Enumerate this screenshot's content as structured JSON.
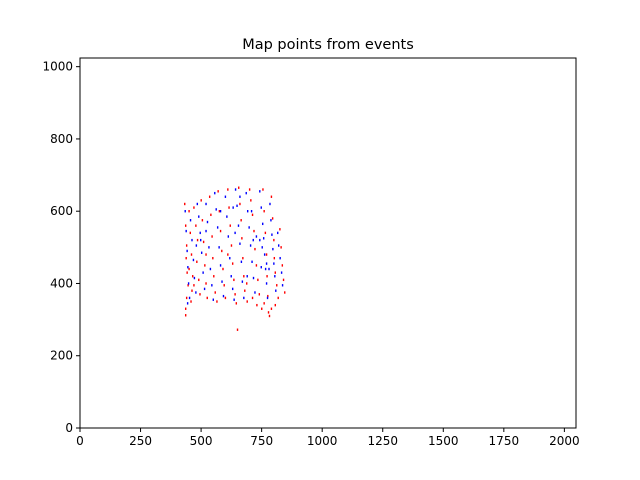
{
  "chart_data": {
    "type": "scatter",
    "title": "Map points from events",
    "xlabel": "",
    "ylabel": "",
    "xlim": [
      0,
      2048
    ],
    "ylim": [
      0,
      1024
    ],
    "xticks": [
      0,
      250,
      500,
      750,
      1000,
      1250,
      1500,
      1750,
      2000
    ],
    "yticks": [
      0,
      200,
      400,
      600,
      800,
      1000
    ],
    "grid": false,
    "legend": "none",
    "colors": {
      "series_red": "#ff0000",
      "series_blue": "#0000ff",
      "axes": "#000000",
      "background": "#ffffff"
    },
    "series": [
      {
        "color": "#ff0000",
        "points": [
          [
            432,
            620
          ],
          [
            436,
            560
          ],
          [
            440,
            505
          ],
          [
            438,
            470
          ],
          [
            442,
            430
          ],
          [
            446,
            395
          ],
          [
            440,
            360
          ],
          [
            436,
            330
          ],
          [
            436,
            312
          ],
          [
            450,
            600
          ],
          [
            455,
            540
          ],
          [
            460,
            480
          ],
          [
            465,
            420
          ],
          [
            462,
            380
          ],
          [
            458,
            350
          ],
          [
            470,
            610
          ],
          [
            478,
            560
          ],
          [
            485,
            520
          ],
          [
            482,
            460
          ],
          [
            490,
            410
          ],
          [
            495,
            370
          ],
          [
            500,
            630
          ],
          [
            505,
            575
          ],
          [
            510,
            515
          ],
          [
            515,
            450
          ],
          [
            520,
            400
          ],
          [
            525,
            360
          ],
          [
            535,
            640
          ],
          [
            540,
            590
          ],
          [
            545,
            530
          ],
          [
            548,
            470
          ],
          [
            552,
            420
          ],
          [
            558,
            375
          ],
          [
            565,
            350
          ],
          [
            570,
            655
          ],
          [
            575,
            600
          ],
          [
            580,
            545
          ],
          [
            585,
            490
          ],
          [
            590,
            440
          ],
          [
            595,
            395
          ],
          [
            600,
            360
          ],
          [
            610,
            660
          ],
          [
            615,
            610
          ],
          [
            620,
            560
          ],
          [
            625,
            505
          ],
          [
            630,
            455
          ],
          [
            635,
            410
          ],
          [
            640,
            370
          ],
          [
            645,
            345
          ],
          [
            655,
            665
          ],
          [
            660,
            620
          ],
          [
            665,
            575
          ],
          [
            668,
            525
          ],
          [
            672,
            470
          ],
          [
            676,
            420
          ],
          [
            680,
            380
          ],
          [
            690,
            350
          ],
          [
            700,
            660
          ],
          [
            705,
            630
          ],
          [
            712,
            590
          ],
          [
            718,
            545
          ],
          [
            722,
            495
          ],
          [
            728,
            450
          ],
          [
            734,
            410
          ],
          [
            740,
            370
          ],
          [
            750,
            330
          ],
          [
            755,
            660
          ],
          [
            760,
            600
          ],
          [
            765,
            540
          ],
          [
            770,
            480
          ],
          [
            772,
            420
          ],
          [
            775,
            365
          ],
          [
            778,
            320
          ],
          [
            782,
            310
          ],
          [
            790,
            640
          ],
          [
            795,
            580
          ],
          [
            800,
            520
          ],
          [
            802,
            470
          ],
          [
            806,
            430
          ],
          [
            812,
            395
          ],
          [
            818,
            360
          ],
          [
            825,
            550
          ],
          [
            830,
            500
          ],
          [
            835,
            450
          ],
          [
            840,
            410
          ],
          [
            845,
            375
          ],
          [
            790,
            330
          ],
          [
            806,
            340
          ],
          [
            760,
            345
          ],
          [
            730,
            340
          ],
          [
            712,
            360
          ],
          [
            688,
            400
          ],
          [
            650,
            272
          ],
          [
            450,
            440
          ],
          [
            470,
            395
          ],
          [
            520,
            480
          ],
          [
            610,
            480
          ]
        ]
      },
      {
        "color": "#0000ff",
        "points": [
          [
            434,
            600
          ],
          [
            438,
            545
          ],
          [
            442,
            490
          ],
          [
            445,
            445
          ],
          [
            448,
            400
          ],
          [
            452,
            360
          ],
          [
            444,
            345
          ],
          [
            456,
            575
          ],
          [
            462,
            520
          ],
          [
            468,
            465
          ],
          [
            472,
            415
          ],
          [
            478,
            375
          ],
          [
            484,
            620
          ],
          [
            490,
            585
          ],
          [
            496,
            540
          ],
          [
            502,
            485
          ],
          [
            508,
            430
          ],
          [
            514,
            385
          ],
          [
            520,
            620
          ],
          [
            526,
            570
          ],
          [
            532,
            500
          ],
          [
            538,
            440
          ],
          [
            544,
            395
          ],
          [
            550,
            355
          ],
          [
            556,
            650
          ],
          [
            562,
            605
          ],
          [
            568,
            555
          ],
          [
            574,
            500
          ],
          [
            580,
            450
          ],
          [
            586,
            405
          ],
          [
            592,
            365
          ],
          [
            600,
            640
          ],
          [
            606,
            585
          ],
          [
            612,
            530
          ],
          [
            618,
            470
          ],
          [
            624,
            420
          ],
          [
            630,
            385
          ],
          [
            636,
            355
          ],
          [
            642,
            660
          ],
          [
            648,
            615
          ],
          [
            654,
            560
          ],
          [
            660,
            510
          ],
          [
            666,
            460
          ],
          [
            670,
            405
          ],
          [
            676,
            360
          ],
          [
            686,
            650
          ],
          [
            692,
            600
          ],
          [
            698,
            555
          ],
          [
            704,
            505
          ],
          [
            710,
            460
          ],
          [
            716,
            415
          ],
          [
            722,
            375
          ],
          [
            742,
            655
          ],
          [
            748,
            610
          ],
          [
            754,
            565
          ],
          [
            758,
            525
          ],
          [
            762,
            480
          ],
          [
            766,
            440
          ],
          [
            770,
            400
          ],
          [
            774,
            360
          ],
          [
            784,
            620
          ],
          [
            788,
            575
          ],
          [
            792,
            535
          ],
          [
            796,
            495
          ],
          [
            800,
            455
          ],
          [
            804,
            420
          ],
          [
            808,
            380
          ],
          [
            816,
            540
          ],
          [
            820,
            505
          ],
          [
            826,
            470
          ],
          [
            832,
            430
          ],
          [
            836,
            395
          ],
          [
            742,
            520
          ],
          [
            752,
            500
          ],
          [
            770,
            455
          ],
          [
            780,
            440
          ],
          [
            728,
            530
          ],
          [
            708,
            600
          ],
          [
            632,
            610
          ],
          [
            580,
            600
          ],
          [
            520,
            545
          ],
          [
            498,
            520
          ],
          [
            480,
            505
          ],
          [
            640,
            540
          ],
          [
            660,
            640
          ],
          [
            690,
            420
          ],
          [
            715,
            520
          ],
          [
            748,
            445
          ]
        ]
      }
    ]
  }
}
